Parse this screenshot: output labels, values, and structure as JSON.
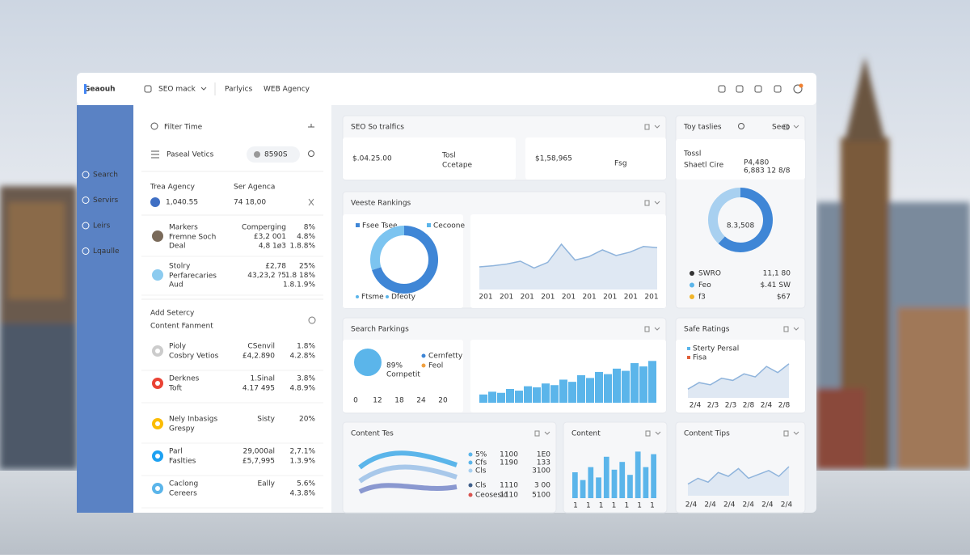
{
  "header": {
    "logo": "Geaouh",
    "tabs": [
      "SEO mack",
      "Parlyics",
      "WEB Agency"
    ]
  },
  "sidebar": {
    "items": [
      "Search",
      "Servirs",
      "Leirs",
      "Lqaulle"
    ]
  },
  "left": {
    "filter": "Filter Time",
    "metric": "Paseal Vetics",
    "pill": "8590S",
    "stats": [
      {
        "label": "Trea Agency",
        "value": "1,040.55"
      },
      {
        "label": "Ser Agenca",
        "value": "74 18,00"
      }
    ],
    "list1": [
      {
        "name": "Markers",
        "sub": "Fremne Soch",
        "sub2": "Deal",
        "mid": [
          "Comperging",
          "£3,2 001",
          "4,8 1ø3"
        ],
        "right": [
          "8%",
          "4.8%",
          "1.8.8%"
        ],
        "color": "#3aa757"
      },
      {
        "name": "Stolry",
        "sub": "Perfarecaries",
        "sub2": "Aud",
        "mid": [
          "£2,78",
          "43,23,2 ?5",
          ""
        ],
        "right": [
          "25%",
          "1.8 18%",
          "1.8.1.9%"
        ],
        "color": "#3aa757"
      }
    ],
    "section": "Add Setercy",
    "section2": "Content Fanment",
    "list2": [
      {
        "name": "Pioly",
        "sub": "Cosbry Vetios",
        "mid": [
          "CSenvil",
          "£4,2.890"
        ],
        "right": [
          "1.8%",
          "4.2.8%"
        ],
        "color": "#d9534f"
      },
      {
        "name": "Derknes",
        "sub": "Toft",
        "mid": [
          "1.Sinal",
          "4.17 495"
        ],
        "right": [
          "3.8%",
          "4.8.9%"
        ],
        "color": "#3aa757"
      },
      {
        "name": "Nely Inbasigs",
        "sub": "Grespy",
        "mid": [
          "Sisty",
          ""
        ],
        "right": [
          "20%",
          ""
        ],
        "color": "#333333"
      },
      {
        "name": "Parl",
        "sub": "Faslties",
        "mid": [
          "29,000al",
          "£5,7,995"
        ],
        "right": [
          "2,7.1%",
          "1.3.9%"
        ],
        "color": "#d9534f"
      },
      {
        "name": "Caclong",
        "sub": "Cereers",
        "mid": [
          "Eally",
          ""
        ],
        "right": [
          "5.6%",
          "4.3.8%"
        ],
        "color": "#3aa757"
      }
    ]
  },
  "seo": {
    "title": "SEO So tralfics",
    "box1": {
      "value": "$.04.25.00",
      "label": "Tosl",
      "sub": "Ccetape"
    },
    "box2": {
      "value": "$1,58,965",
      "label": "Fsg"
    }
  },
  "toy": {
    "title": "Toy taslies",
    "select": "Seeo",
    "small": "Tossl",
    "name": "Shaetl Cire",
    "value": "P4,480",
    "sub": "6,883 12 8/8",
    "donut": {
      "values": [
        62,
        38
      ],
      "colors": [
        "#3f86d6",
        "#a8d0f0"
      ],
      "center": "8.3,508"
    },
    "rows": [
      {
        "label": "SWRO",
        "value": "11,1 80",
        "color": "#333333"
      },
      {
        "label": "Feo",
        "value": "$.41 SW",
        "color": "#5bb5ea"
      },
      {
        "label": "f3",
        "value": "$67",
        "color": "#f0b429"
      }
    ]
  },
  "rankings": {
    "title": "Veeste Rankings",
    "legend": [
      "Fsee Tsee",
      "Cecoone"
    ],
    "legend_colors": [
      "#3f86d6",
      "#5bb5ea"
    ],
    "bottom": [
      "Ftsme",
      "Dfeoty"
    ],
    "donut": {
      "values": [
        70,
        30
      ],
      "colors": [
        "#3f86d6",
        "#7cc4f0"
      ]
    },
    "line": {
      "values": [
        40,
        42,
        45,
        50,
        38,
        48,
        80,
        52,
        58,
        70,
        60,
        66,
        76,
        74
      ],
      "ylim": [
        0,
        100
      ],
      "color": "#8fb4dc"
    },
    "xlabels": [
      "201",
      "201",
      "201",
      "201",
      "201",
      "201",
      "201",
      "201",
      "201"
    ]
  },
  "search": {
    "title": "Search Parkings",
    "big": "89%",
    "big_sub": "Cornpetit",
    "legend": [
      "Cernfetty",
      "Feol"
    ],
    "legend_colors": [
      "#3f86d6",
      "#f0a040"
    ],
    "xlabels": [
      "0",
      "12",
      "18",
      "24",
      "20"
    ],
    "bars": {
      "values": [
        15,
        20,
        18,
        25,
        22,
        30,
        28,
        35,
        32,
        42,
        38,
        50,
        45,
        56,
        52,
        62,
        58,
        72,
        66,
        76
      ],
      "ylim": [
        0,
        100
      ],
      "color": "#5bb5ea"
    }
  },
  "safe": {
    "title": "Safe Ratings",
    "legend": [
      "Sterty Persal",
      "Fisa"
    ],
    "legend_colors": [
      "#5bb5ea",
      "#e0603a"
    ],
    "line": {
      "values": [
        20,
        35,
        30,
        45,
        40,
        55,
        48,
        72,
        58,
        78
      ],
      "ylim": [
        0,
        100
      ],
      "color": "#8fb4dc"
    },
    "xlabels": [
      "2/4",
      "2/3",
      "2/3",
      "2/8",
      "2/4",
      "2/8"
    ]
  },
  "contentTes": {
    "title": "Content Tes",
    "rows": [
      {
        "label": "5%",
        "a": "1100",
        "b": "1E0",
        "color": "#5bb5ea"
      },
      {
        "label": "Cfs",
        "a": "1190",
        "b": "133",
        "color": "#5bb5ea"
      },
      {
        "label": "Cls",
        "a": "",
        "b": "3100",
        "color": "#a8d0f0"
      },
      {
        "label": "Cls",
        "a": "1110",
        "b": "3 00",
        "color": "#3f5f8a"
      },
      {
        "label": "Ceosesid",
        "a": "1110",
        "b": "5100",
        "color": "#d9534f"
      }
    ]
  },
  "content": {
    "title": "Content",
    "bars": {
      "values": [
        50,
        35,
        60,
        40,
        80,
        55,
        70,
        45,
        90,
        60,
        85
      ],
      "ylim": [
        0,
        100
      ],
      "color": "#5bb5ea"
    },
    "xlabels": [
      "1",
      "1",
      "1",
      "1",
      "1",
      "1",
      "1"
    ]
  },
  "tips": {
    "title": "Content Tips",
    "line": {
      "values": [
        30,
        45,
        35,
        60,
        50,
        70,
        45,
        55,
        65,
        50,
        75
      ],
      "ylim": [
        0,
        100
      ],
      "color": "#8fb4dc"
    },
    "xlabels": [
      "2/4",
      "2/4",
      "2/4",
      "2/4",
      "2/4",
      "2/4"
    ]
  }
}
